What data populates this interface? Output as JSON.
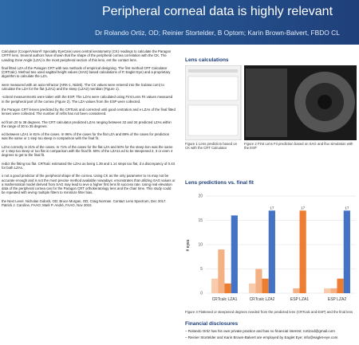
{
  "header": {
    "title": "Peripheral corneal data is highly relevant",
    "authors": "Dr Rolando Ortiz, OD; Reinier Stortelder, B Optom; Karin Brown-Balvert, FBDO CL"
  },
  "left": {
    "paragraphs": [
      "Calculator (CooperVision® Specialty EyeCare) uses central keratometry (CK) readings to calculate the Paragon CRT® lens. Several authors have shown that the shape of the peripheral cornea correlation with the CK. The Landing Zone Angle (LZA) is the most peripheral section of this lens, ent the contact lens.",
      "final fitted LZA of the Paragon CRT with two methods of empirical designing. The first method CRT Calculator (CRTcalc). Method two used sagittal height values (SAG) based calculations of P, Eaglet Eye) and a proprietary algorithm to calculate the LZA.",
      "were measured with an auto-refractor (ARK-1, Nidek). The CK values were entered into the lculator.com) to calculate the LZA for the flat (LZA1) and the steep (LZA2) meridian (Figure 1).",
      "-scleral measurements were taken with the ESP. The LZAs were calculated using First Lens Fit values measured in the peripheral part of the cornea (Figure 2). The LZA values from the ESP were collected.",
      "the Paragon CRT lenses predicted by the CRTcalc and corrected until good centration and e LZAs of the final fitted lenses were collected. The number of refits has not been considered.",
      "ed from 20 to 38 degrees. The CRT calculator predicted LZAs ranging between 32 and 34 predicted LZAs within the range of 30 to 35 degrees.",
      "ed between LZA1 in 81% of the cases. In 96% of the cases for the flat LZA and 89% of the cases for prediction was the same or 1 step too steep in comparison with the final fit.",
      "LZAs correctly in 21% of the cases. In 71% of the cases for the flat LZA and 50% for the steep tion was the same or 1 step too steep or too flat in comparison with the final fit. 50% of the LZA1s ed to be steepened 2, 3 or even 4 degrees to get to the final fit.",
      "redict the fitting too flat. CRTcalc estimated the LZAs as being 1.39 and 1.14 steps too flat, d a discrepancy of 0.43 for both LZAs.",
      "s not a good predictor of the peripheral shape of the cornea. Using CK as the only parameter to ns may not be accurate enough and is not the most precise method available nowadays. emonstrates that utilizing SAG values or a mathematical model derived from SAG may lead to ieve a higher first lens fit success rate. Using real elevation data of the peripheral cornea can for the Paragon CRT orthokeratology lens and the chair time. This study could be repeated with ieving multiple fitters to minimize fitter bias.",
      "the Next Level. Nicholas Gidosh, OD; Bruce Morgan, OD; Craig Norman. Contact Lens Spectrum, Dec 2017. Patrick J. Caroline, FAAO; Mark P. André, FAAO, Nov 2010."
    ]
  },
  "lens_calculations": {
    "heading": "Lens calculations",
    "figure1_caption": "Figure 1 Lens prediction based on CK with the CRT Calculator",
    "figure2_caption": "Figure 2 First Lens Fit prediction based on SAG and flux simulation with the ESP"
  },
  "predictions": {
    "heading": "Lens predictions vs. final fit",
    "caption": "Figure 3 Flattened or steepened degrees needed from the predicted lens (CRTcalc and ESP) and the final lens"
  },
  "chart_data": {
    "type": "bar",
    "y_label": "# eyes",
    "categories": [
      "CRTcalc LZA1",
      "CRTcalc LZA2",
      "ESP LZA1",
      "ESP LZA2"
    ],
    "series": [
      {
        "color": "#f8cbad",
        "values": [
          3,
          2,
          0,
          1
        ]
      },
      {
        "color": "#f4b183",
        "values": [
          9,
          5,
          1,
          1
        ]
      },
      {
        "color": "#ed7d31",
        "values": [
          2,
          3,
          17,
          3
        ],
        "value_labels": [
          null,
          null,
          "17",
          null
        ]
      },
      {
        "color": "#4472c4",
        "values": [
          16,
          17,
          0,
          17
        ],
        "value_labels": [
          null,
          "17",
          null,
          "17"
        ]
      }
    ],
    "ylim": [
      0,
      20
    ],
    "yticks": [
      0,
      5,
      10,
      15,
      20
    ],
    "grid": true
  },
  "disclosures": {
    "heading": "Financial disclosures",
    "items": [
      "– Rolando Ortiz has his own private practice and has no financial interest; rortizod@gmail.com",
      "– Reinier Stortelder and Karin Brown-Balvert are employed by Eaglet Eye; info@eaglet-eye.com"
    ]
  }
}
